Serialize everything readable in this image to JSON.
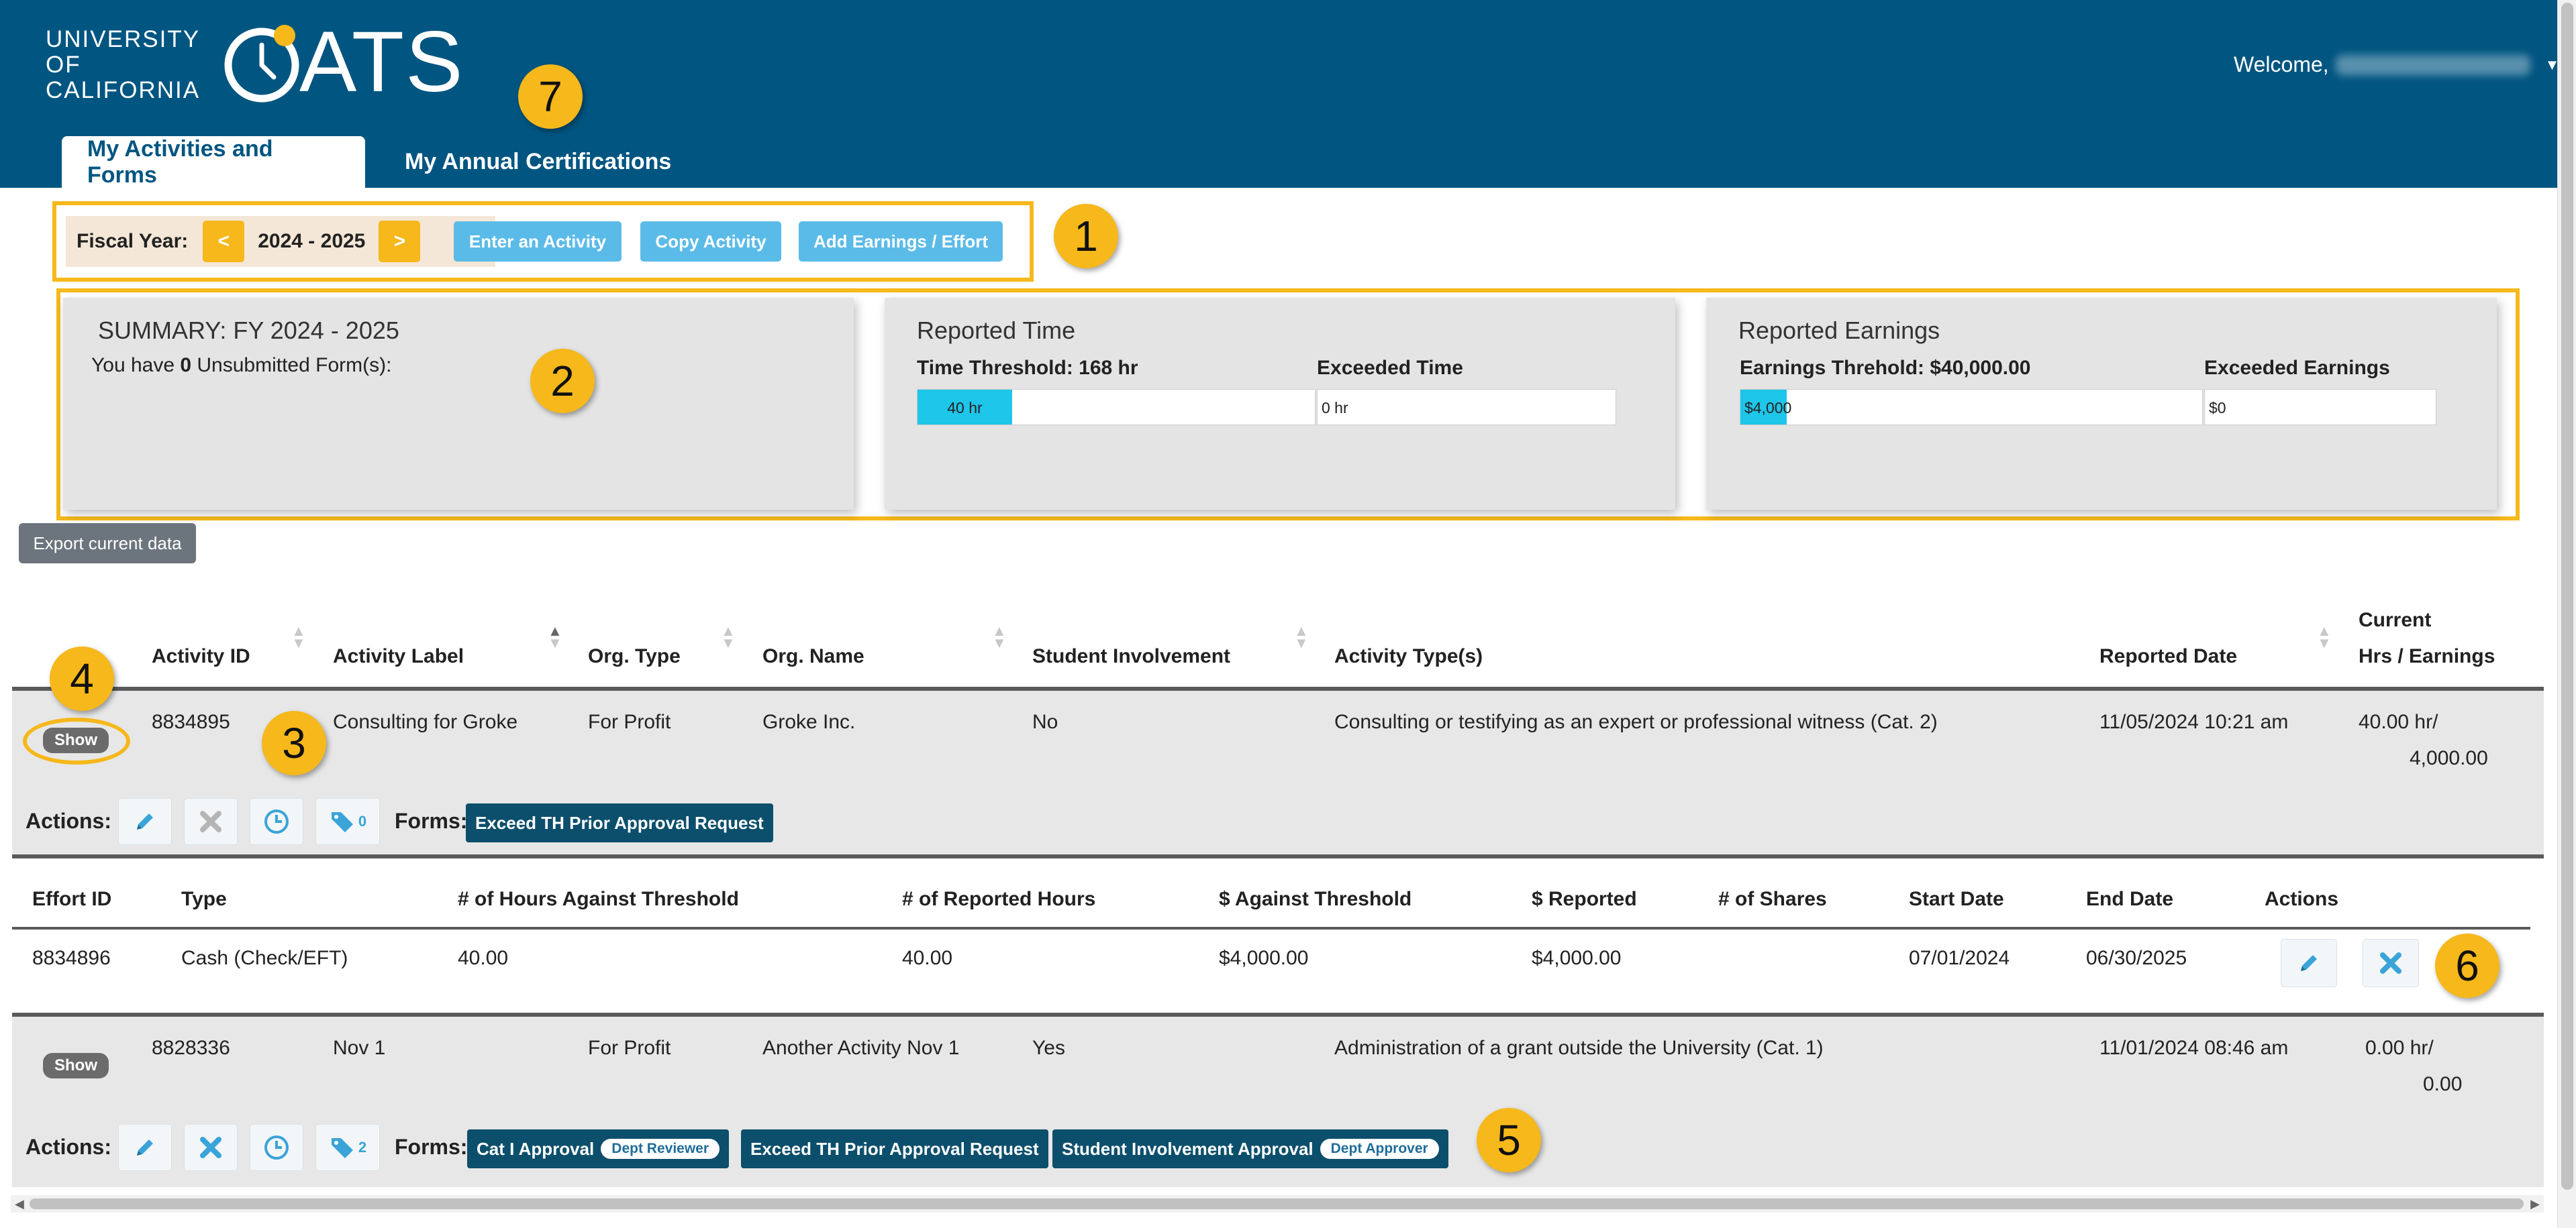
{
  "header": {
    "logo_line1": "UNIVERSITY",
    "logo_line2": "OF",
    "logo_line3": "CALIFORNIA",
    "app_name": "ATS",
    "app_brand": "OATS",
    "welcome": "Welcome,",
    "tabs": [
      {
        "label": "My Activities and Forms",
        "active": true
      },
      {
        "label": "My Annual Certifications",
        "active": false
      }
    ]
  },
  "toolbar": {
    "fiscal_year_label": "Fiscal Year:",
    "prev_label": "<",
    "next_label": ">",
    "fiscal_year": "2024 - 2025",
    "enter_activity": "Enter an Activity",
    "copy_activity": "Copy Activity",
    "add_earnings": "Add Earnings / Effort"
  },
  "summary": {
    "title": "SUMMARY: FY 2024 - 2025",
    "unsubmitted_prefix": "You have",
    "unsubmitted_count": "0",
    "unsubmitted_suffix": "Unsubmitted Form(s):"
  },
  "reported_time": {
    "title": "Reported Time",
    "threshold_label": "Time Threshold: 168 hr",
    "threshold_value": "40 hr",
    "threshold_fraction": 0.238,
    "exceeded_label": "Exceeded Time",
    "exceeded_value": "0 hr"
  },
  "reported_earnings": {
    "title": "Reported Earnings",
    "threshold_label": "Earnings Threhold: $40,000.00",
    "threshold_value": "$4,000",
    "threshold_fraction": 0.1,
    "exceeded_label": "Exceeded Earnings",
    "exceeded_value": "$0"
  },
  "export_label": "Export current data",
  "table": {
    "headers": {
      "activity_id": "Activity ID",
      "activity_label": "Activity Label",
      "org_type": "Org. Type",
      "org_name": "Org. Name",
      "student_involvement": "Student Involvement",
      "activity_types": "Activity Type(s)",
      "reported_date": "Reported Date",
      "current_line1": "Current",
      "current_line2": "Hrs / Earnings"
    },
    "show_label": "Show",
    "actions_label": "Actions:",
    "forms_label": "Forms:",
    "rows": [
      {
        "activity_id": "8834895",
        "activity_label": "Consulting for Groke",
        "org_type": "For Profit",
        "org_name": "Groke Inc.",
        "student_involvement": "No",
        "activity_types": "Consulting or testifying as an expert or professional witness (Cat. 2)",
        "reported_date": "11/05/2024 10:21 am",
        "hrs": "40.00 hr/",
        "earnings": "4,000.00",
        "tag_count": "0",
        "forms": [
          {
            "label": "Exceed TH Prior Approval Request",
            "pill": ""
          }
        ]
      },
      {
        "activity_id": "8828336",
        "activity_label": "Nov 1",
        "org_type": "For Profit",
        "org_name": "Another Activity Nov 1",
        "student_involvement": "Yes",
        "activity_types": "Administration of a grant outside the University (Cat. 1)",
        "reported_date": "11/01/2024 08:46 am",
        "hrs": "0.00 hr/",
        "earnings": "0.00",
        "tag_count": "2",
        "forms": [
          {
            "label": "Cat I Approval",
            "pill": "Dept Reviewer"
          },
          {
            "label": "Exceed TH Prior Approval Request",
            "pill": ""
          },
          {
            "label": "Student Involvement Approval",
            "pill": "Dept Approver"
          }
        ]
      }
    ]
  },
  "effort": {
    "headers": {
      "effort_id": "Effort ID",
      "type": "Type",
      "hours_against": "# of Hours Against Threshold",
      "reported_hours": "# of Reported Hours",
      "dollars_against": "$ Against Threshold",
      "dollars_reported": "$ Reported",
      "shares": "# of Shares",
      "start_date": "Start Date",
      "end_date": "End Date",
      "actions": "Actions"
    },
    "row": {
      "effort_id": "8834896",
      "type": "Cash (Check/EFT)",
      "hours_against": "40.00",
      "reported_hours": "40.00",
      "dollars_against": "$4,000.00",
      "dollars_reported": "$4,000.00",
      "shares": "",
      "start_date": "07/01/2024",
      "end_date": "06/30/2025"
    }
  },
  "annotations": [
    "1",
    "2",
    "3",
    "4",
    "5",
    "6",
    "7"
  ],
  "colors": {
    "header_bg": "#005581",
    "accent_yellow": "#f6b81a",
    "button_blue": "#5bbbe8",
    "bar_fill": "#1ec6e9",
    "form_button": "#0c4f6c"
  },
  "icons": [
    "edit-icon",
    "delete-icon",
    "clock-icon",
    "tags-icon",
    "sort-icon",
    "caret-down-icon",
    "oats-clock-icon"
  ]
}
